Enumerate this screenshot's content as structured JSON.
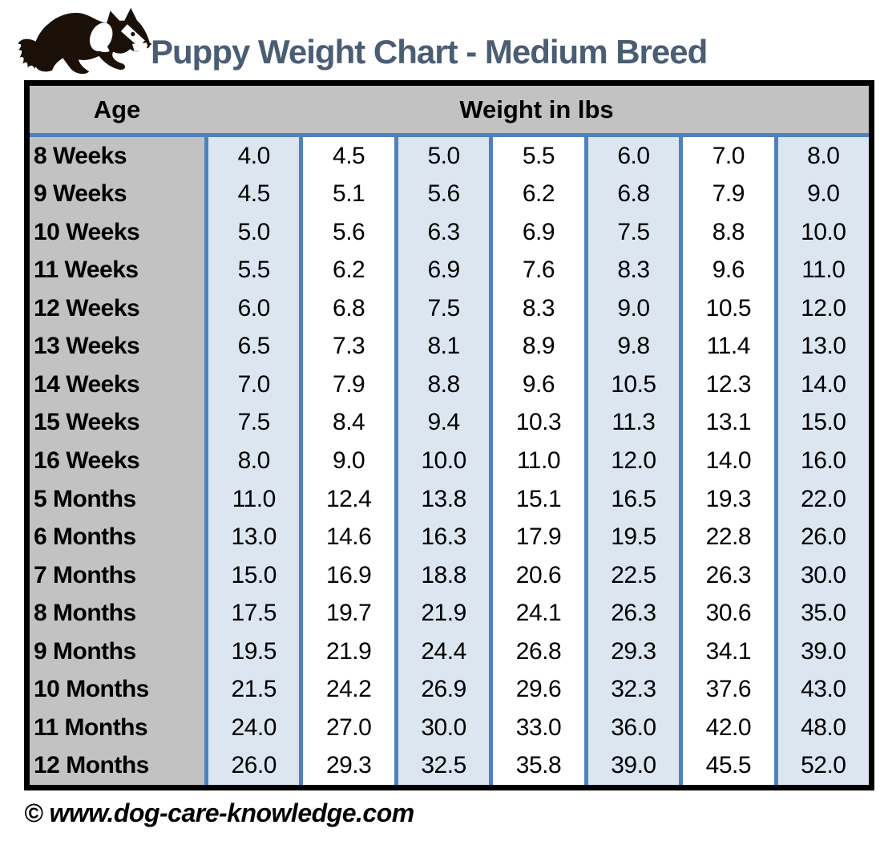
{
  "page": {
    "title": "Puppy Weight Chart - Medium Breed",
    "logo_icon": "border-collie-dog-icon",
    "footer": "© www.dog-care-knowledge.com"
  },
  "chart_data": {
    "type": "table",
    "title": "Puppy Weight Chart - Medium Breed",
    "columns": [
      "Age",
      "Weight in lbs"
    ],
    "weight_unit": "lbs",
    "rows": [
      {
        "age": "8 Weeks",
        "weights": [
          "4.0",
          "4.5",
          "5.0",
          "5.5",
          "6.0",
          "7.0",
          "8.0"
        ]
      },
      {
        "age": "9 Weeks",
        "weights": [
          "4.5",
          "5.1",
          "5.6",
          "6.2",
          "6.8",
          "7.9",
          "9.0"
        ]
      },
      {
        "age": "10 Weeks",
        "weights": [
          "5.0",
          "5.6",
          "6.3",
          "6.9",
          "7.5",
          "8.8",
          "10.0"
        ]
      },
      {
        "age": "11 Weeks",
        "weights": [
          "5.5",
          "6.2",
          "6.9",
          "7.6",
          "8.3",
          "9.6",
          "11.0"
        ]
      },
      {
        "age": "12 Weeks",
        "weights": [
          "6.0",
          "6.8",
          "7.5",
          "8.3",
          "9.0",
          "10.5",
          "12.0"
        ]
      },
      {
        "age": "13 Weeks",
        "weights": [
          "6.5",
          "7.3",
          "8.1",
          "8.9",
          "9.8",
          "11.4",
          "13.0"
        ]
      },
      {
        "age": "14 Weeks",
        "weights": [
          "7.0",
          "7.9",
          "8.8",
          "9.6",
          "10.5",
          "12.3",
          "14.0"
        ]
      },
      {
        "age": "15 Weeks",
        "weights": [
          "7.5",
          "8.4",
          "9.4",
          "10.3",
          "11.3",
          "13.1",
          "15.0"
        ]
      },
      {
        "age": "16 Weeks",
        "weights": [
          "8.0",
          "9.0",
          "10.0",
          "11.0",
          "12.0",
          "14.0",
          "16.0"
        ]
      },
      {
        "age": "5 Months",
        "weights": [
          "11.0",
          "12.4",
          "13.8",
          "15.1",
          "16.5",
          "19.3",
          "22.0"
        ]
      },
      {
        "age": "6 Months",
        "weights": [
          "13.0",
          "14.6",
          "16.3",
          "17.9",
          "19.5",
          "22.8",
          "26.0"
        ]
      },
      {
        "age": "7 Months",
        "weights": [
          "15.0",
          "16.9",
          "18.8",
          "20.6",
          "22.5",
          "26.3",
          "30.0"
        ]
      },
      {
        "age": "8 Months",
        "weights": [
          "17.5",
          "19.7",
          "21.9",
          "24.1",
          "26.3",
          "30.6",
          "35.0"
        ]
      },
      {
        "age": "9 Months",
        "weights": [
          "19.5",
          "21.9",
          "24.4",
          "26.8",
          "29.3",
          "34.1",
          "39.0"
        ]
      },
      {
        "age": "10 Months",
        "weights": [
          "21.5",
          "24.2",
          "26.9",
          "29.6",
          "32.3",
          "37.6",
          "43.0"
        ]
      },
      {
        "age": "11 Months",
        "weights": [
          "24.0",
          "27.0",
          "30.0",
          "33.0",
          "36.0",
          "42.0",
          "48.0"
        ]
      },
      {
        "age": "12 Months",
        "weights": [
          "26.0",
          "29.3",
          "32.5",
          "35.8",
          "39.0",
          "45.5",
          "52.0"
        ]
      }
    ],
    "layout": {
      "weight_column_count": 7,
      "column_striping": "odd weight columns light blue, even weight columns white",
      "grid": "blue vertical separators, no horizontal row lines",
      "legend": "none"
    }
  },
  "colors": {
    "accent_blue_border": "#4f81bd",
    "light_blue_cell": "#dce6f1",
    "header_gray": "#c2c2c2",
    "title_text": "#4a5d73",
    "outer_border": "#000000",
    "dog_logo": "#1a1008"
  }
}
